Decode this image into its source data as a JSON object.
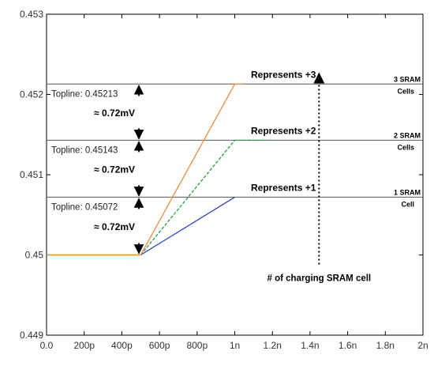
{
  "chart_data": {
    "type": "line",
    "title": "",
    "xlabel": "",
    "ylabel": "",
    "xlim": [
      0,
      2e-09
    ],
    "ylim": [
      0.449,
      0.453
    ],
    "x_ticks": [
      0,
      2e-10,
      4e-10,
      6e-10,
      8e-10,
      1e-09,
      1.2e-09,
      1.4e-09,
      1.6e-09,
      1.8e-09,
      2e-09
    ],
    "x_tick_labels": [
      "0.0",
      "200p",
      "400p",
      "600p",
      "800p",
      "1n",
      "1.2n",
      "1.4n",
      "1.6n",
      "1.8n",
      "2n"
    ],
    "y_ticks": [
      0.449,
      0.45,
      0.451,
      0.452,
      0.453
    ],
    "y_tick_labels": [
      "0.449",
      "0.45",
      "0.451",
      "0.452",
      "0.453"
    ],
    "grid": false,
    "legend": "none",
    "series": [
      {
        "color": "#2a3fd6",
        "dash": "solid",
        "x": [
          0,
          5e-10,
          1e-09
        ],
        "y": [
          0.45,
          0.45,
          0.45072
        ]
      },
      {
        "color": "#22a33a",
        "dash": "dashed",
        "x": [
          5e-10,
          1e-09,
          1.18e-09
        ],
        "y": [
          0.45,
          0.45143,
          0.45143
        ]
      },
      {
        "color": "#f08c3c",
        "dash": "solid",
        "x": [
          0,
          5e-10,
          1e-09,
          1.05e-09
        ],
        "y": [
          0.45,
          0.45,
          0.45213,
          0.45213
        ]
      }
    ],
    "toplines": [
      {
        "value": 0.45213,
        "label": "Topline: 0.45213",
        "represents": "Represents +3",
        "cells": [
          "3 SRAM",
          "Cells"
        ]
      },
      {
        "value": 0.45143,
        "label": "Topline: 0.45143",
        "represents": "Represents +2",
        "cells": [
          "2 SRAM",
          "Cells"
        ]
      },
      {
        "value": 0.45072,
        "label": "Topline: 0.45072",
        "represents": "Represents +1",
        "cells": [
          "1 SRAM",
          "Cell"
        ]
      }
    ],
    "deltas": [
      {
        "from": 0.45143,
        "to": 0.45213,
        "label": "≈ 0.72mV"
      },
      {
        "from": 0.45072,
        "to": 0.45143,
        "label": "≈ 0.72mV"
      },
      {
        "from": 0.45,
        "to": 0.45072,
        "label": "≈ 0.72mV"
      }
    ],
    "annotation": {
      "label": "# of charging SRAM cell",
      "x": 1.45e-09,
      "y_from": 0.45,
      "y_to": 0.4523
    },
    "colors": {
      "axis": "#000000",
      "topline": "#555555",
      "tick_text": "#333333"
    }
  }
}
